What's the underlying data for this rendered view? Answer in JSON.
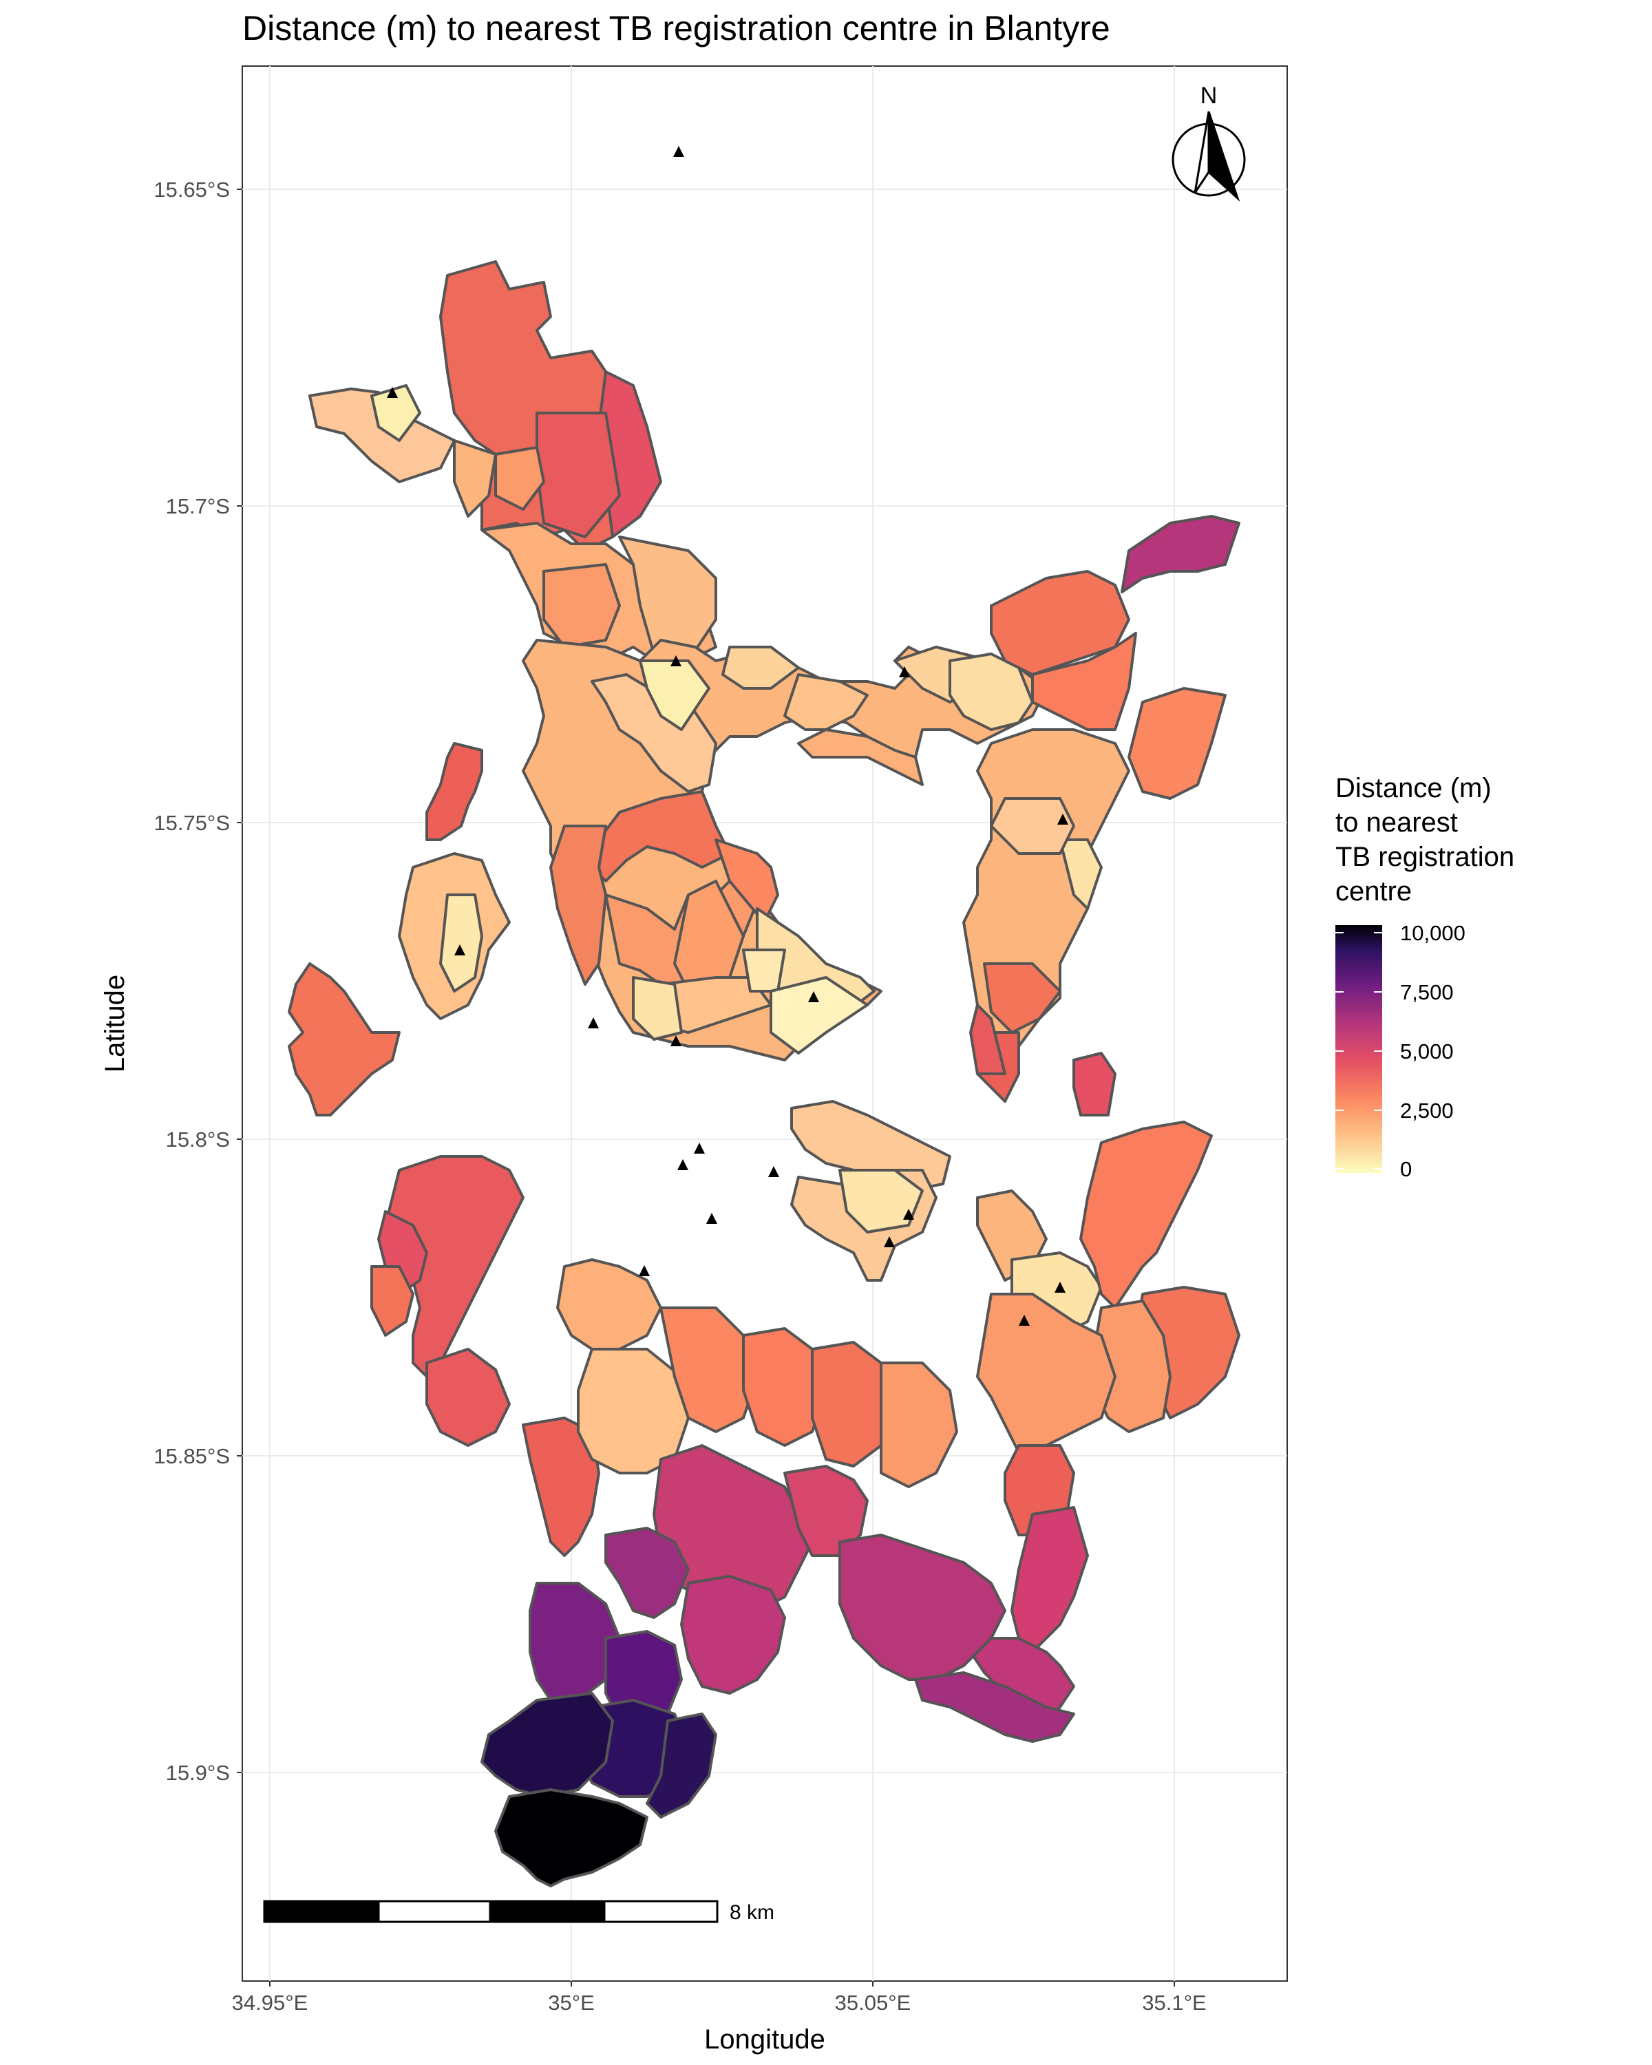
{
  "chart_data": {
    "type": "choropleth-map",
    "title": "Distance (m) to nearest TB registration centre in Blantyre",
    "xlabel": "Longitude",
    "ylabel": "Latitude",
    "x_ticks": [
      "34.95°E",
      "35°E",
      "35.05°E",
      "35.1°E"
    ],
    "y_ticks": [
      "15.65°S",
      "15.7°S",
      "15.75°S",
      "15.8°S",
      "15.85°S",
      "15.9°S"
    ],
    "legend": {
      "title_lines": [
        "Distance (m)",
        "to nearest",
        "TB registration",
        "centre"
      ],
      "ticks": [
        "10,000",
        "7,500",
        "5,000",
        "2,500",
        "0"
      ],
      "colormap": "magma",
      "range": [
        0,
        10000
      ],
      "placement": "right"
    },
    "north_arrow_label": "N",
    "scale_bar_label": "8 km",
    "grid": true,
    "centres_marker": "black triangle"
  }
}
